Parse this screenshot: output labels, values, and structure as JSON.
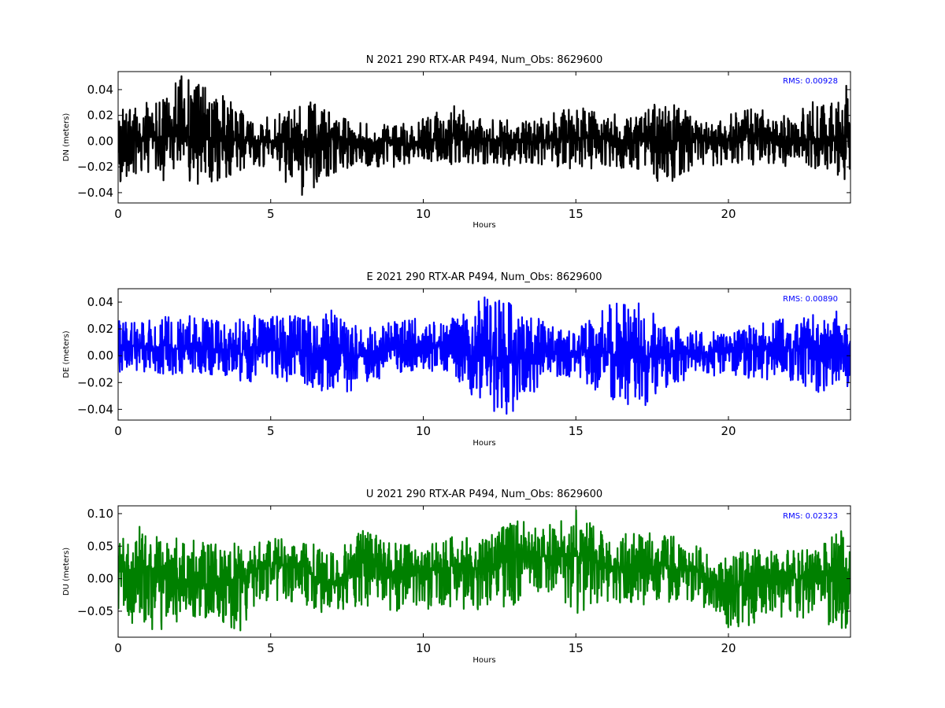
{
  "chart_data": [
    {
      "type": "line",
      "title": "N 2021 290 RTX-AR  P494, Num_Obs: 8629600",
      "xlabel": "Hours",
      "ylabel": "DN (meters)",
      "xlim": [
        0,
        24
      ],
      "ylim": [
        -0.048,
        0.054
      ],
      "x_ticks": [
        0,
        5,
        10,
        15,
        20
      ],
      "x_tick_labels": [
        "0",
        "5",
        "10",
        "15",
        "20"
      ],
      "y_ticks": [
        -0.04,
        -0.02,
        0.0,
        0.02,
        0.04
      ],
      "y_tick_labels": [
        "−0.04",
        "−0.02",
        "0.00",
        "0.02",
        "0.04"
      ],
      "annotation": "RMS:  0.00928",
      "color": "#000000",
      "grid": false,
      "series": [
        {
          "x": [
            0,
            1,
            2,
            3,
            4,
            5,
            6,
            7,
            8,
            9,
            10,
            11,
            12,
            13,
            14,
            15,
            16,
            17,
            18,
            19,
            20,
            21,
            22,
            23,
            24
          ],
          "center": [
            0.001,
            0.003,
            0.004,
            0.003,
            0.001,
            0.0,
            -0.002,
            0.003,
            0.0,
            -0.002,
            -0.002,
            0.004,
            0.002,
            -0.001,
            0.0,
            0.003,
            0.001,
            0.001,
            0.0,
            0.001,
            0.002,
            0.004,
            0.001,
            0.002,
            0.002
          ],
          "max": [
            0.025,
            0.035,
            0.052,
            0.045,
            0.025,
            0.018,
            0.034,
            0.022,
            0.014,
            0.013,
            0.018,
            0.028,
            0.02,
            0.016,
            0.02,
            0.03,
            0.022,
            0.02,
            0.036,
            0.015,
            0.022,
            0.026,
            0.019,
            0.034,
            0.045
          ],
          "min": [
            -0.035,
            -0.026,
            -0.036,
            -0.033,
            -0.024,
            -0.019,
            -0.045,
            -0.025,
            -0.02,
            -0.022,
            -0.015,
            -0.02,
            -0.018,
            -0.02,
            -0.02,
            -0.022,
            -0.022,
            -0.024,
            -0.036,
            -0.02,
            -0.018,
            -0.02,
            -0.02,
            -0.022,
            -0.035
          ]
        }
      ]
    },
    {
      "type": "line",
      "title": "E 2021 290 RTX-AR  P494, Num_Obs: 8629600",
      "xlabel": "Hours",
      "ylabel": "DE (meters)",
      "xlim": [
        0,
        24
      ],
      "ylim": [
        -0.048,
        0.05
      ],
      "x_ticks": [
        0,
        5,
        10,
        15,
        20
      ],
      "x_tick_labels": [
        "0",
        "5",
        "10",
        "15",
        "20"
      ],
      "y_ticks": [
        -0.04,
        -0.02,
        0.0,
        0.02,
        0.04
      ],
      "y_tick_labels": [
        "−0.04",
        "−0.02",
        "0.00",
        "0.02",
        "0.04"
      ],
      "annotation": "RMS:  0.00890",
      "color": "#0000ff",
      "grid": false,
      "series": [
        {
          "x": [
            0,
            1,
            2,
            3,
            4,
            5,
            6,
            7,
            8,
            9,
            10,
            11,
            12,
            13,
            14,
            15,
            16,
            17,
            18,
            19,
            20,
            21,
            22,
            23,
            24
          ],
          "center": [
            0.008,
            0.007,
            0.005,
            0.005,
            0.004,
            0.004,
            0.004,
            0.0,
            0.0,
            0.005,
            0.007,
            0.006,
            0.0,
            -0.003,
            0.0,
            0.003,
            0.002,
            -0.002,
            0.001,
            0.002,
            0.004,
            0.007,
            0.006,
            0.007,
            0.008
          ],
          "max": [
            0.03,
            0.028,
            0.03,
            0.03,
            0.03,
            0.03,
            0.03,
            0.034,
            0.022,
            0.025,
            0.03,
            0.028,
            0.05,
            0.038,
            0.025,
            0.018,
            0.04,
            0.04,
            0.025,
            0.018,
            0.018,
            0.025,
            0.028,
            0.032,
            0.035
          ],
          "min": [
            -0.012,
            -0.012,
            -0.015,
            -0.015,
            -0.02,
            -0.02,
            -0.02,
            -0.03,
            -0.028,
            -0.015,
            -0.01,
            -0.015,
            -0.043,
            -0.046,
            -0.02,
            -0.015,
            -0.032,
            -0.042,
            -0.028,
            -0.015,
            -0.015,
            -0.02,
            -0.022,
            -0.03,
            -0.025
          ]
        }
      ]
    },
    {
      "type": "line",
      "title": "U 2021 290 RTX-AR  P494, Num_Obs: 8629600",
      "xlabel": "Hours",
      "ylabel": "DU (meters)",
      "xlim": [
        0,
        24
      ],
      "ylim": [
        -0.09,
        0.112
      ],
      "x_ticks": [
        0,
        5,
        10,
        15,
        20
      ],
      "x_tick_labels": [
        "0",
        "5",
        "10",
        "15",
        "20"
      ],
      "y_ticks": [
        -0.05,
        0.0,
        0.05,
        0.1
      ],
      "y_tick_labels": [
        "−0.05",
        "0.00",
        "0.05",
        "0.10"
      ],
      "annotation": "RMS:  0.02323",
      "color": "#008000",
      "grid": false,
      "series": [
        {
          "x": [
            0,
            1,
            2,
            3,
            4,
            5,
            6,
            7,
            8,
            9,
            10,
            11,
            12,
            13,
            14,
            15,
            16,
            17,
            18,
            19,
            20,
            21,
            22,
            23,
            24
          ],
          "center": [
            0.01,
            0.02,
            -0.01,
            -0.005,
            0.0,
            0.025,
            0.015,
            -0.01,
            0.025,
            0.01,
            0.01,
            0.02,
            0.015,
            0.03,
            0.035,
            0.035,
            0.02,
            0.015,
            0.02,
            0.01,
            -0.02,
            0.005,
            0.0,
            -0.005,
            0.01
          ],
          "max": [
            0.06,
            0.09,
            0.06,
            0.06,
            0.055,
            0.065,
            0.06,
            0.045,
            0.075,
            0.06,
            0.05,
            0.065,
            0.075,
            0.09,
            0.085,
            0.113,
            0.07,
            0.07,
            0.07,
            0.05,
            0.035,
            0.05,
            0.045,
            0.05,
            0.1
          ],
          "min": [
            -0.05,
            -0.09,
            -0.065,
            -0.065,
            -0.085,
            -0.03,
            -0.045,
            -0.055,
            -0.04,
            -0.05,
            -0.05,
            -0.045,
            -0.055,
            -0.045,
            -0.02,
            -0.055,
            -0.035,
            -0.04,
            -0.04,
            -0.035,
            -0.085,
            -0.065,
            -0.06,
            -0.065,
            -0.085
          ]
        }
      ]
    }
  ]
}
